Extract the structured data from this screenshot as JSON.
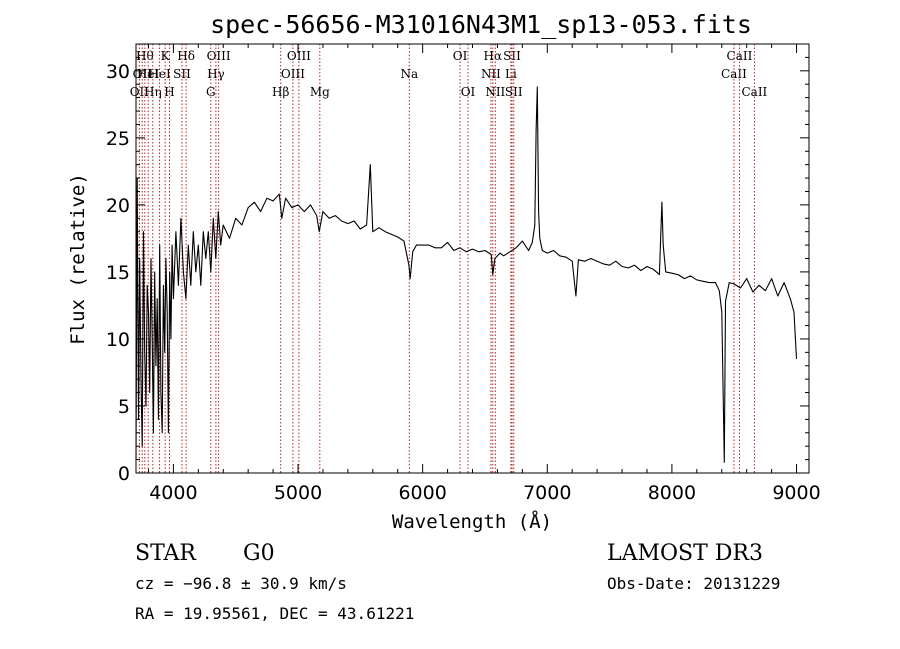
{
  "chart_data": {
    "type": "line",
    "title": "spec-56656-M31016N43M1_sp13-053.fits",
    "xlabel": "Wavelength (Å)",
    "ylabel": "Flux (relative)",
    "xlim": [
      3700,
      9100
    ],
    "ylim": [
      0,
      32
    ],
    "xticks": [
      4000,
      5000,
      6000,
      7000,
      8000,
      9000
    ],
    "yticks": [
      0,
      5,
      10,
      15,
      20,
      25,
      30
    ],
    "series": [
      {
        "name": "flux",
        "points": [
          [
            3700,
            1
          ],
          [
            3710,
            22
          ],
          [
            3720,
            4
          ],
          [
            3730,
            16
          ],
          [
            3740,
            7
          ],
          [
            3750,
            2
          ],
          [
            3760,
            18
          ],
          [
            3770,
            9
          ],
          [
            3780,
            5
          ],
          [
            3790,
            14
          ],
          [
            3800,
            12
          ],
          [
            3810,
            6
          ],
          [
            3820,
            16
          ],
          [
            3830,
            10
          ],
          [
            3840,
            3
          ],
          [
            3850,
            15
          ],
          [
            3860,
            8
          ],
          [
            3870,
            13
          ],
          [
            3880,
            4
          ],
          [
            3890,
            17
          ],
          [
            3900,
            6
          ],
          [
            3910,
            3
          ],
          [
            3920,
            14
          ],
          [
            3930,
            9
          ],
          [
            3940,
            16
          ],
          [
            3950,
            12
          ],
          [
            3960,
            3
          ],
          [
            3970,
            15
          ],
          [
            3980,
            10
          ],
          [
            3990,
            17
          ],
          [
            4000,
            13
          ],
          [
            4020,
            18
          ],
          [
            4040,
            14
          ],
          [
            4060,
            19
          ],
          [
            4080,
            15
          ],
          [
            4100,
            13
          ],
          [
            4120,
            17
          ],
          [
            4140,
            14
          ],
          [
            4160,
            18
          ],
          [
            4180,
            15
          ],
          [
            4200,
            17
          ],
          [
            4220,
            14
          ],
          [
            4240,
            18
          ],
          [
            4260,
            16
          ],
          [
            4280,
            18
          ],
          [
            4300,
            15
          ],
          [
            4320,
            19
          ],
          [
            4340,
            16
          ],
          [
            4360,
            19.5
          ],
          [
            4380,
            17
          ],
          [
            4400,
            18.5
          ],
          [
            4450,
            17.5
          ],
          [
            4500,
            19
          ],
          [
            4550,
            18.5
          ],
          [
            4600,
            19.8
          ],
          [
            4650,
            20.2
          ],
          [
            4700,
            19.5
          ],
          [
            4750,
            20.5
          ],
          [
            4800,
            20.3
          ],
          [
            4850,
            20.8
          ],
          [
            4870,
            19
          ],
          [
            4900,
            20.5
          ],
          [
            4950,
            19.8
          ],
          [
            5000,
            20
          ],
          [
            5050,
            19.5
          ],
          [
            5100,
            20
          ],
          [
            5150,
            19.2
          ],
          [
            5170,
            18
          ],
          [
            5200,
            19.5
          ],
          [
            5250,
            19
          ],
          [
            5300,
            19.2
          ],
          [
            5350,
            18.8
          ],
          [
            5400,
            18.6
          ],
          [
            5450,
            18.8
          ],
          [
            5500,
            18.2
          ],
          [
            5550,
            18.5
          ],
          [
            5580,
            23
          ],
          [
            5600,
            18
          ],
          [
            5650,
            18.3
          ],
          [
            5700,
            18
          ],
          [
            5750,
            17.8
          ],
          [
            5800,
            17.6
          ],
          [
            5850,
            17.3
          ],
          [
            5890,
            15.5
          ],
          [
            5900,
            14.5
          ],
          [
            5920,
            16.5
          ],
          [
            5950,
            17
          ],
          [
            6000,
            17
          ],
          [
            6050,
            17
          ],
          [
            6100,
            16.8
          ],
          [
            6150,
            16.8
          ],
          [
            6200,
            17.2
          ],
          [
            6250,
            16.6
          ],
          [
            6300,
            16.8
          ],
          [
            6350,
            16.5
          ],
          [
            6400,
            16.7
          ],
          [
            6450,
            16.5
          ],
          [
            6500,
            16.6
          ],
          [
            6550,
            16.3
          ],
          [
            6563,
            14.8
          ],
          [
            6580,
            16
          ],
          [
            6620,
            16.4
          ],
          [
            6650,
            16.2
          ],
          [
            6700,
            16.5
          ],
          [
            6750,
            16.8
          ],
          [
            6800,
            17.3
          ],
          [
            6850,
            16.6
          ],
          [
            6880,
            17.2
          ],
          [
            6900,
            18.5
          ],
          [
            6910,
            25.5
          ],
          [
            6920,
            28.8
          ],
          [
            6930,
            19.5
          ],
          [
            6940,
            17.5
          ],
          [
            6960,
            16.6
          ],
          [
            7000,
            16.4
          ],
          [
            7050,
            16.6
          ],
          [
            7100,
            16.2
          ],
          [
            7150,
            16.1
          ],
          [
            7200,
            15.8
          ],
          [
            7230,
            13.2
          ],
          [
            7250,
            15.9
          ],
          [
            7300,
            15.8
          ],
          [
            7350,
            16
          ],
          [
            7400,
            15.8
          ],
          [
            7450,
            15.6
          ],
          [
            7500,
            15.5
          ],
          [
            7550,
            15.8
          ],
          [
            7600,
            15.4
          ],
          [
            7650,
            15.3
          ],
          [
            7700,
            15.5
          ],
          [
            7750,
            15.1
          ],
          [
            7800,
            15.4
          ],
          [
            7850,
            15.2
          ],
          [
            7900,
            14.8
          ],
          [
            7920,
            20.2
          ],
          [
            7930,
            17
          ],
          [
            7950,
            15
          ],
          [
            8000,
            14.9
          ],
          [
            8050,
            14.8
          ],
          [
            8100,
            14.5
          ],
          [
            8150,
            14.7
          ],
          [
            8200,
            14.4
          ],
          [
            8250,
            14.3
          ],
          [
            8300,
            14.2
          ],
          [
            8350,
            14.2
          ],
          [
            8380,
            13.6
          ],
          [
            8400,
            12
          ],
          [
            8420,
            0.8
          ],
          [
            8430,
            12.8
          ],
          [
            8460,
            14.2
          ],
          [
            8500,
            14.1
          ],
          [
            8550,
            13.8
          ],
          [
            8600,
            14.5
          ],
          [
            8650,
            13.5
          ],
          [
            8700,
            14
          ],
          [
            8750,
            13.6
          ],
          [
            8800,
            14.5
          ],
          [
            8850,
            13.2
          ],
          [
            8900,
            14.2
          ],
          [
            8950,
            13
          ],
          [
            8980,
            12
          ],
          [
            9000,
            8.5
          ]
        ]
      }
    ],
    "line_markers": [
      {
        "x": 3727,
        "row": 2,
        "label": "OII"
      },
      {
        "x": 3750,
        "row": 1,
        "label": "OII"
      },
      {
        "x": 3771,
        "row": 0,
        "label": "Hθ"
      },
      {
        "x": 3798,
        "row": 1,
        "label": "HeI"
      },
      {
        "x": 3835,
        "row": 2,
        "label": "Hη"
      },
      {
        "x": 3889,
        "row": 1,
        "label": "HeI"
      },
      {
        "x": 3934,
        "row": 0,
        "label": "K"
      },
      {
        "x": 3969,
        "row": 2,
        "label": "H"
      },
      {
        "x": 4069,
        "row": 1,
        "label": "SII"
      },
      {
        "x": 4102,
        "row": 0,
        "label": "Hδ"
      },
      {
        "x": 4300,
        "row": 2,
        "label": "G"
      },
      {
        "x": 4341,
        "row": 1,
        "label": "Hγ"
      },
      {
        "x": 4363,
        "row": 0,
        "label": "OIII"
      },
      {
        "x": 4861,
        "row": 2,
        "label": "Hβ"
      },
      {
        "x": 4959,
        "row": 1,
        "label": "OIII"
      },
      {
        "x": 5007,
        "row": 0,
        "label": "OIII"
      },
      {
        "x": 5175,
        "row": 2,
        "label": "Mg"
      },
      {
        "x": 5893,
        "row": 1,
        "label": "Na"
      },
      {
        "x": 6300,
        "row": 0,
        "label": "OI"
      },
      {
        "x": 6364,
        "row": 2,
        "label": "OI"
      },
      {
        "x": 6548,
        "row": 1,
        "label": "NII"
      },
      {
        "x": 6563,
        "row": 0,
        "label": "Hα"
      },
      {
        "x": 6583,
        "row": 2,
        "label": "NII"
      },
      {
        "x": 6708,
        "row": 1,
        "label": "Li"
      },
      {
        "x": 6717,
        "row": 0,
        "label": "SII"
      },
      {
        "x": 6731,
        "row": 2,
        "label": "SII"
      },
      {
        "x": 8498,
        "row": 1,
        "label": "CaII"
      },
      {
        "x": 8542,
        "row": 0,
        "label": "CaII"
      },
      {
        "x": 8662,
        "row": 2,
        "label": "CaII"
      }
    ]
  },
  "info": {
    "class": "STAR",
    "subclass": "G0",
    "survey": "LAMOST DR3",
    "cz": "cz = −96.8 ± 30.9 km/s",
    "obs_date": "Obs-Date: 20131229",
    "radec": "RA =  19.95561, DEC =  43.61221"
  }
}
